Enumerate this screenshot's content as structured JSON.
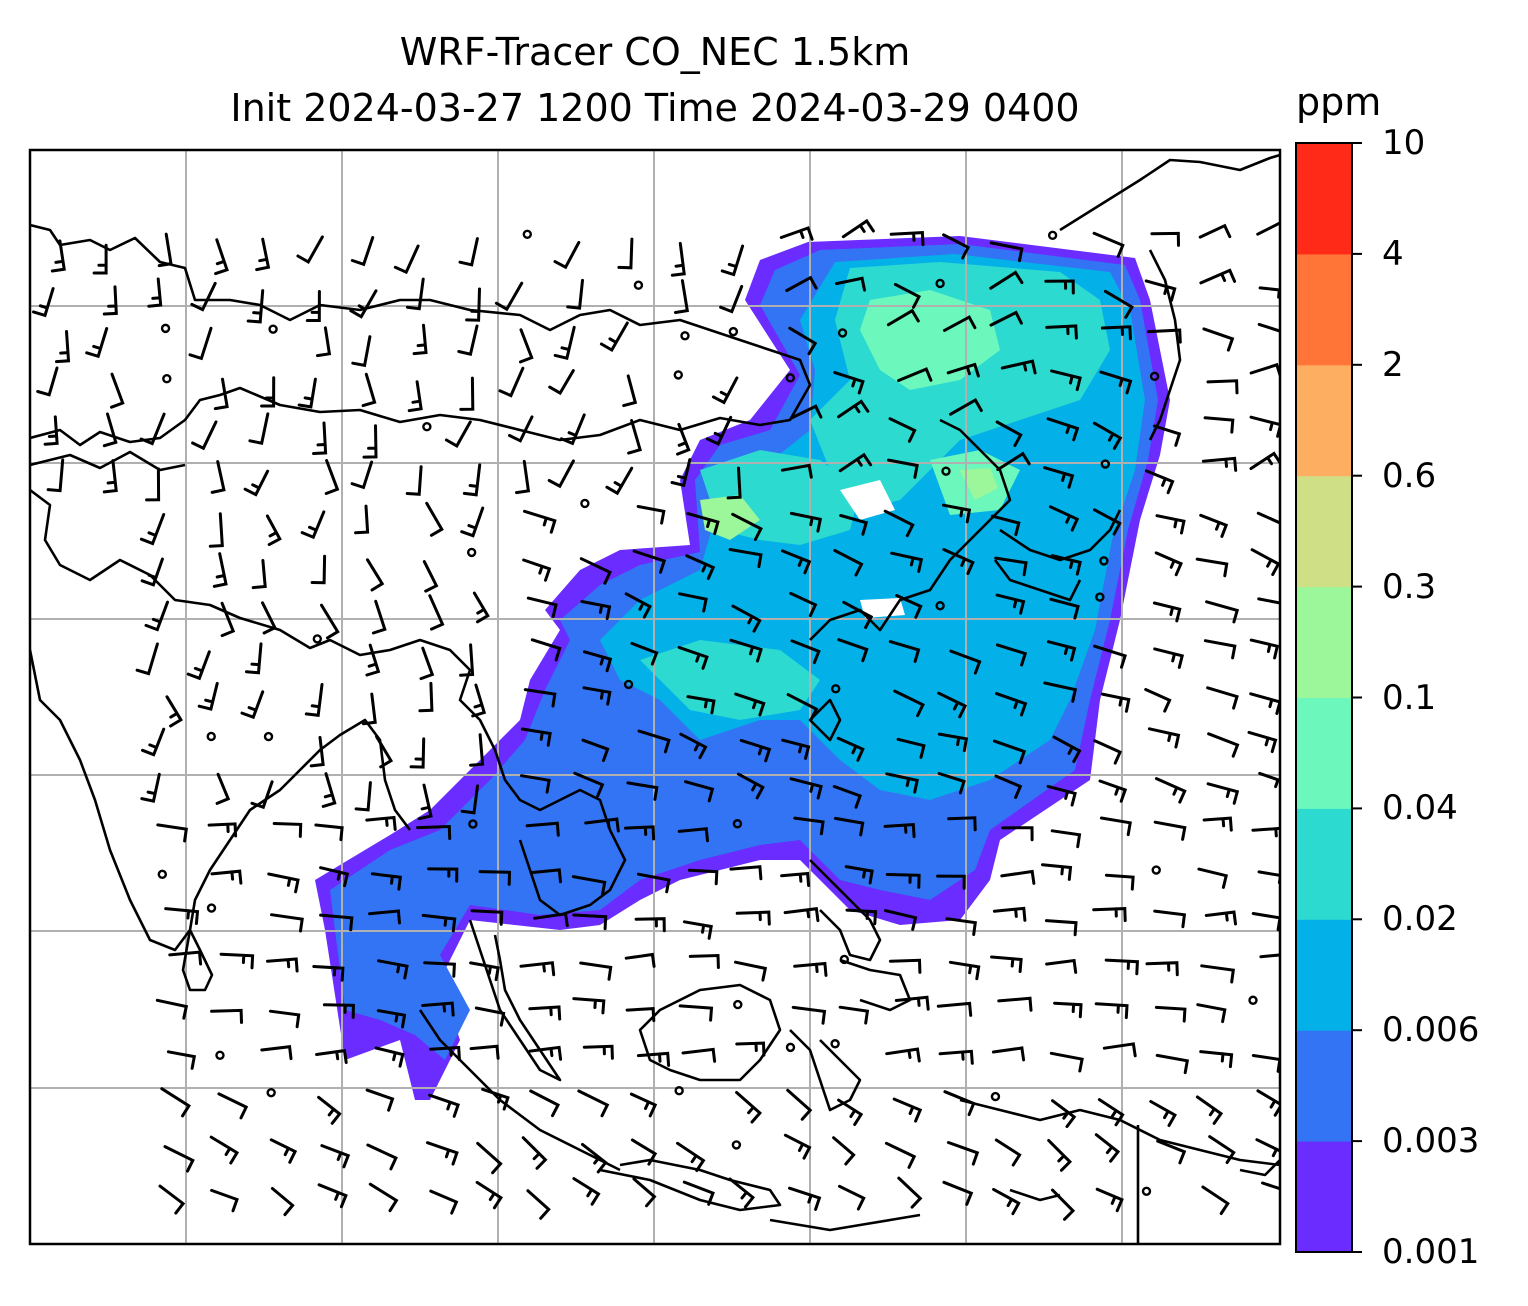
{
  "title": {
    "line1": "WRF-Tracer CO_NEC 1.5km",
    "line2": "Init 2024-03-27 1200 Time 2024-03-29 0400"
  },
  "colorbar": {
    "unit": "ppm",
    "levels": [
      "0.001",
      "0.003",
      "0.006",
      "0.02",
      "0.04",
      "0.1",
      "0.3",
      "0.6",
      "2",
      "4",
      "10"
    ],
    "colors": [
      "#6a2cff",
      "#3274f3",
      "#04b0e8",
      "#2ddad0",
      "#6cf8bd",
      "#9cf79a",
      "#cfdf86",
      "#fdae61",
      "#ff7538",
      "#ff2a17"
    ]
  },
  "map": {
    "features": [
      "coastlines",
      "gridlines",
      "wind-barbs",
      "tracer-concentration"
    ],
    "gridline_color": "#b0b0b0"
  }
}
